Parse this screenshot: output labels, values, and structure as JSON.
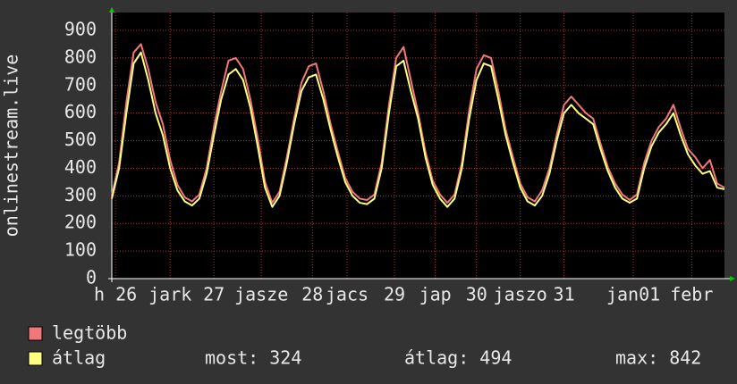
{
  "chart_data": {
    "type": "line",
    "ylabel": "onlinestream.live",
    "x": [
      0,
      2,
      4,
      6,
      8,
      10,
      12,
      14,
      16,
      18,
      20,
      22,
      24,
      26,
      28,
      30,
      32,
      34,
      36,
      38,
      40,
      42,
      44,
      46,
      48,
      50,
      52,
      54,
      56,
      58,
      60,
      62,
      64,
      66,
      68,
      70,
      72,
      74,
      76,
      78,
      80,
      82,
      84,
      86,
      88,
      90,
      92,
      94,
      96,
      98,
      100,
      102,
      104,
      106,
      108,
      110,
      112,
      114,
      116,
      118,
      120,
      122,
      124,
      126,
      128,
      130,
      132,
      134,
      136,
      138,
      140,
      142,
      144,
      146,
      148,
      150,
      152,
      154,
      156,
      158,
      160,
      162,
      164,
      166,
      168
    ],
    "xlim": [
      0,
      168
    ],
    "xticks": [
      {
        "value": 1,
        "label": "h 26"
      },
      {
        "value": 16,
        "label": "jark"
      },
      {
        "value": 28,
        "label": "27"
      },
      {
        "value": 41,
        "label": "jasze"
      },
      {
        "value": 55,
        "label": "28"
      },
      {
        "value": 64.5,
        "label": "jacs"
      },
      {
        "value": 77.5,
        "label": "29"
      },
      {
        "value": 88.7,
        "label": "jap"
      },
      {
        "value": 100,
        "label": "30"
      },
      {
        "value": 112,
        "label": "jaszo"
      },
      {
        "value": 124,
        "label": "31"
      },
      {
        "value": 143,
        "label": "jan01"
      },
      {
        "value": 159,
        "label": "febr"
      }
    ],
    "ylim": [
      0,
      900
    ],
    "yticks": [
      0,
      100,
      200,
      300,
      400,
      500,
      600,
      700,
      800,
      900
    ],
    "grid": true,
    "series": [
      {
        "name": "legtöbb",
        "color": "#f07878",
        "values": [
          300,
          420,
          640,
          820,
          850,
          760,
          640,
          560,
          430,
          340,
          295,
          280,
          305,
          400,
          550,
          680,
          790,
          800,
          760,
          650,
          510,
          350,
          275,
          315,
          440,
          580,
          710,
          770,
          780,
          680,
          560,
          460,
          365,
          315,
          290,
          285,
          305,
          420,
          630,
          800,
          840,
          720,
          600,
          460,
          355,
          305,
          275,
          305,
          420,
          610,
          760,
          810,
          800,
          680,
          540,
          440,
          345,
          295,
          280,
          320,
          400,
          520,
          630,
          660,
          630,
          600,
          580,
          490,
          405,
          345,
          305,
          285,
          305,
          420,
          500,
          550,
          580,
          630,
          545,
          470,
          440,
          400,
          430,
          345,
          330
        ]
      },
      {
        "name": "átlag",
        "color": "#ffff80",
        "values": [
          290,
          400,
          600,
          780,
          820,
          720,
          600,
          520,
          400,
          320,
          280,
          265,
          290,
          380,
          520,
          650,
          740,
          760,
          720,
          620,
          480,
          330,
          260,
          300,
          420,
          560,
          680,
          730,
          740,
          650,
          540,
          440,
          350,
          300,
          275,
          270,
          290,
          400,
          600,
          770,
          790,
          680,
          580,
          440,
          340,
          290,
          260,
          290,
          400,
          580,
          720,
          780,
          770,
          650,
          520,
          420,
          330,
          280,
          265,
          300,
          380,
          500,
          600,
          630,
          600,
          580,
          560,
          470,
          390,
          330,
          290,
          275,
          290,
          400,
          480,
          530,
          560,
          600,
          520,
          450,
          410,
          380,
          390,
          330,
          324
        ]
      }
    ],
    "legend": {
      "stats": [
        "most: 324",
        "átlag: 494",
        "max: 842"
      ]
    }
  }
}
